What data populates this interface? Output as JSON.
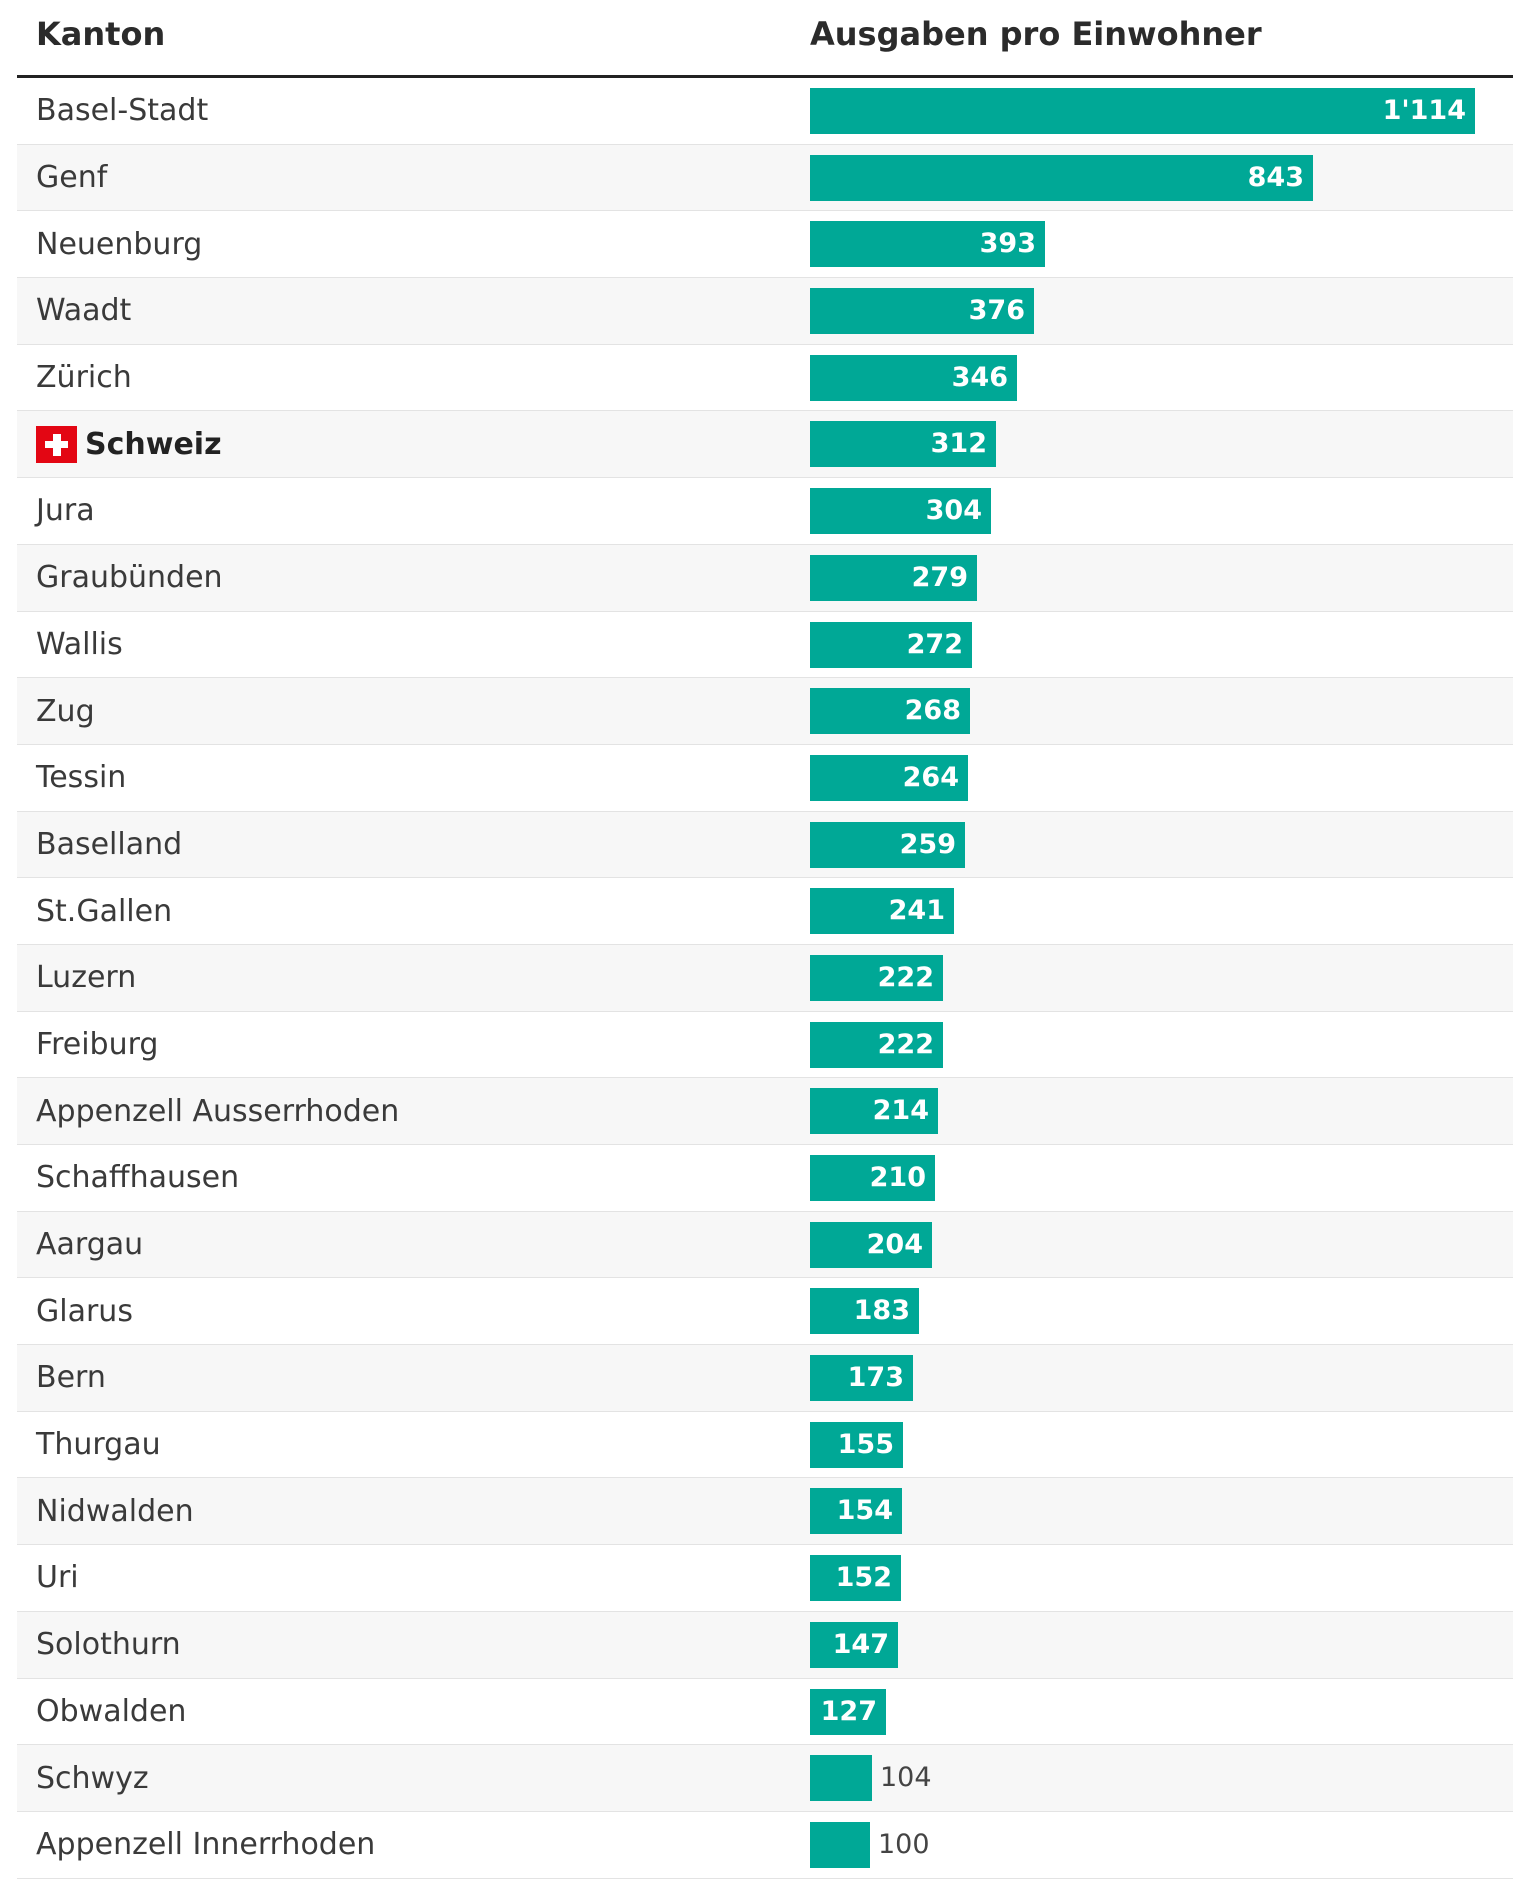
{
  "colors": {
    "bar": "#00a896",
    "flag_red": "#e30613"
  },
  "icons": {
    "swiss_flag": "swiss-flag-icon"
  },
  "table": {
    "col_label": "Kanton",
    "col_value": "Ausgaben pro Einwohner"
  },
  "chart_data": {
    "type": "bar",
    "orientation": "horizontal",
    "title": "",
    "xlabel": "Ausgaben pro Einwohner",
    "ylabel": "Kanton",
    "xlim": [
      0,
      1114
    ],
    "grid": false,
    "categories": [
      "Basel-Stadt",
      "Genf",
      "Neuenburg",
      "Waadt",
      "Zürich",
      "Schweiz",
      "Jura",
      "Graubünden",
      "Wallis",
      "Zug",
      "Tessin",
      "Baselland",
      "St.Gallen",
      "Luzern",
      "Freiburg",
      "Appenzell Ausserrhoden",
      "Schaffhausen",
      "Aargau",
      "Glarus",
      "Bern",
      "Thurgau",
      "Nidwalden",
      "Uri",
      "Solothurn",
      "Obwalden",
      "Schwyz",
      "Appenzell Innerrhoden"
    ],
    "values": [
      1114,
      843,
      393,
      376,
      346,
      312,
      304,
      279,
      272,
      268,
      264,
      259,
      241,
      222,
      222,
      214,
      210,
      204,
      183,
      173,
      155,
      154,
      152,
      147,
      127,
      104,
      100
    ],
    "value_labels": [
      "1'114",
      "843",
      "393",
      "376",
      "346",
      "312",
      "304",
      "279",
      "272",
      "268",
      "264",
      "259",
      "241",
      "222",
      "222",
      "214",
      "210",
      "204",
      "183",
      "173",
      "155",
      "154",
      "152",
      "147",
      "127",
      "104",
      "100"
    ],
    "highlighted": [
      "Schweiz"
    ]
  }
}
